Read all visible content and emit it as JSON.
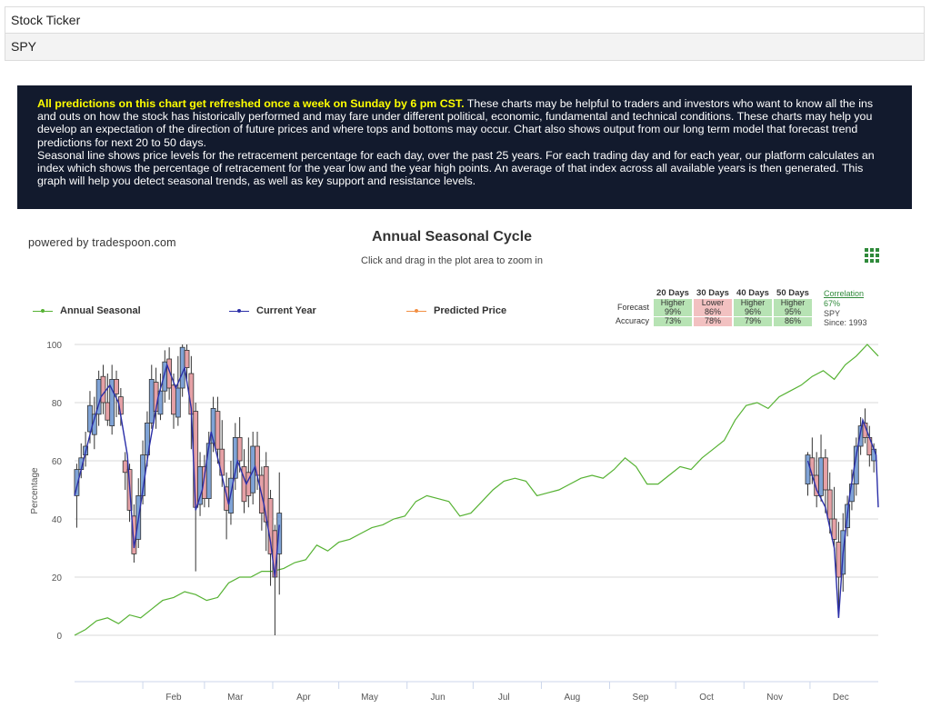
{
  "ticker": {
    "label": "Stock Ticker",
    "symbol": "SPY"
  },
  "info": {
    "highlight": "All predictions on this chart get refreshed once a week on Sunday by 6 pm CST.",
    "para1": " These charts may be helpful to traders and investors who want to know all the ins and outs on how the stock has historically performed and may fare under different political, economic, fundamental and technical conditions. These charts may help you develop an expectation of the direction of future prices and where tops and bottoms may occur. Chart also shows output from our long term model that forecast trend predictions for next 20 to 50 days.",
    "para2": "Seasonal line shows price levels for the retracement percentage for each day, over the past 25 years. For each trading day and for each year, our platform calculates an index which shows the percentage of retracement for the year low and the year high points. An average of that index across all available years is then generated. This graph will help you detect seasonal trends, as well as key support and resistance levels."
  },
  "powered_by": "powered by tradespoon.com",
  "icons": {
    "menu": "grid-menu-icon"
  },
  "colors": {
    "seasonal": "#56b233",
    "current": "#2b2fa8",
    "predicted": "#f28f43",
    "header_bg": "#121a2d",
    "highlight": "#ffff00",
    "up_candle": "#7fa3d6",
    "down_candle": "#e6a1a6"
  },
  "forecast_table": {
    "headers": [
      "20 Days",
      "30 Days",
      "40 Days",
      "50 Days"
    ],
    "forecast_label": "Forecast",
    "accuracy_label": "Accuracy",
    "forecast": [
      {
        "dir": "Higher",
        "pct": "99%",
        "tone": "green"
      },
      {
        "dir": "Lower",
        "pct": "86%",
        "tone": "red"
      },
      {
        "dir": "Higher",
        "pct": "96%",
        "tone": "green"
      },
      {
        "dir": "Higher",
        "pct": "95%",
        "tone": "green"
      }
    ],
    "accuracy": [
      {
        "pct": "73%",
        "tone": "green"
      },
      {
        "pct": "78%",
        "tone": "red"
      },
      {
        "pct": "79%",
        "tone": "green"
      },
      {
        "pct": "86%",
        "tone": "green"
      }
    ]
  },
  "correlation": {
    "label": "Correlation",
    "value": "67%",
    "symbol": "SPY",
    "since": "Since: 1993"
  },
  "chart_data": {
    "type": "line",
    "title": "Annual Seasonal Cycle",
    "subtitle": "Click and drag in the plot area to zoom in",
    "ylabel": "Percentage",
    "ylim": [
      0,
      100
    ],
    "yticks": [
      0,
      20,
      40,
      60,
      80,
      100
    ],
    "xlim": [
      0,
      365
    ],
    "xticks": [
      {
        "label": "Feb",
        "day": 31
      },
      {
        "label": "Mar",
        "day": 59
      },
      {
        "label": "Apr",
        "day": 90
      },
      {
        "label": "May",
        "day": 120
      },
      {
        "label": "Jun",
        "day": 151
      },
      {
        "label": "Jul",
        "day": 181
      },
      {
        "label": "Aug",
        "day": 212
      },
      {
        "label": "Sep",
        "day": 243
      },
      {
        "label": "Oct",
        "day": 273
      },
      {
        "label": "Nov",
        "day": 304
      },
      {
        "label": "Dec",
        "day": 334
      }
    ],
    "grid": true,
    "legend_position": "top-left",
    "series": [
      {
        "name": "Annual Seasonal",
        "kind": "line",
        "x": [
          0,
          5,
          10,
          15,
          20,
          25,
          30,
          35,
          40,
          45,
          50,
          55,
          60,
          65,
          70,
          75,
          80,
          85,
          90,
          95,
          100,
          105,
          110,
          115,
          120,
          125,
          130,
          135,
          140,
          145,
          150,
          155,
          160,
          165,
          170,
          175,
          180,
          185,
          190,
          195,
          200,
          205,
          210,
          215,
          220,
          225,
          230,
          235,
          240,
          245,
          250,
          255,
          260,
          265,
          270,
          275,
          280,
          285,
          290,
          295,
          300,
          305,
          310,
          315,
          320,
          325,
          330,
          335,
          340,
          345,
          350,
          355,
          360,
          365
        ],
        "values": [
          0,
          2,
          5,
          6,
          4,
          7,
          6,
          9,
          12,
          13,
          15,
          14,
          12,
          13,
          18,
          20,
          20,
          22,
          22,
          23,
          25,
          26,
          31,
          29,
          32,
          33,
          35,
          37,
          38,
          40,
          41,
          46,
          48,
          47,
          46,
          41,
          42,
          46,
          50,
          53,
          54,
          53,
          48,
          49,
          50,
          52,
          54,
          55,
          54,
          57,
          61,
          58,
          52,
          52,
          55,
          58,
          57,
          61,
          64,
          67,
          74,
          79,
          80,
          78,
          82,
          84,
          86,
          89,
          91,
          88,
          93,
          96,
          100,
          96
        ]
      },
      {
        "name": "Current Year",
        "kind": "candlestick",
        "candles": [
          {
            "day": 1,
            "open": 48,
            "close": 57,
            "high": 59,
            "low": 37
          },
          {
            "day": 3,
            "open": 57,
            "close": 61,
            "high": 66,
            "low": 54
          },
          {
            "day": 5,
            "open": 62,
            "close": 65,
            "high": 70,
            "low": 58
          },
          {
            "day": 7,
            "open": 70,
            "close": 79,
            "high": 84,
            "low": 66
          },
          {
            "day": 9,
            "open": 69,
            "close": 76,
            "high": 82,
            "low": 64
          },
          {
            "day": 11,
            "open": 76,
            "close": 88,
            "high": 91,
            "low": 72
          },
          {
            "day": 13,
            "open": 89,
            "close": 80,
            "high": 93,
            "low": 76
          },
          {
            "day": 15,
            "open": 80,
            "close": 74,
            "high": 90,
            "low": 72
          },
          {
            "day": 17,
            "open": 72,
            "close": 88,
            "high": 93,
            "low": 69
          },
          {
            "day": 19,
            "open": 88,
            "close": 83,
            "high": 91,
            "low": 75
          },
          {
            "day": 21,
            "open": 82,
            "close": 76,
            "high": 85,
            "low": 72
          },
          {
            "day": 23,
            "open": 60,
            "close": 56,
            "high": 63,
            "low": 50
          },
          {
            "day": 25,
            "open": 57,
            "close": 43,
            "high": 59,
            "low": 39
          },
          {
            "day": 27,
            "open": 41,
            "close": 28,
            "high": 45,
            "low": 25
          },
          {
            "day": 29,
            "open": 33,
            "close": 48,
            "high": 54,
            "low": 30
          },
          {
            "day": 31,
            "open": 48,
            "close": 62,
            "high": 67,
            "low": 45
          },
          {
            "day": 33,
            "open": 62,
            "close": 73,
            "high": 77,
            "low": 58
          },
          {
            "day": 35,
            "open": 73,
            "close": 88,
            "high": 93,
            "low": 71
          },
          {
            "day": 37,
            "open": 87,
            "close": 77,
            "high": 92,
            "low": 71
          },
          {
            "day": 39,
            "open": 76,
            "close": 84,
            "high": 90,
            "low": 74
          },
          {
            "day": 41,
            "open": 84,
            "close": 94,
            "high": 98,
            "low": 80
          },
          {
            "day": 43,
            "open": 95,
            "close": 85,
            "high": 99,
            "low": 81
          },
          {
            "day": 45,
            "open": 86,
            "close": 76,
            "high": 90,
            "low": 71
          },
          {
            "day": 47,
            "open": 75,
            "close": 85,
            "high": 96,
            "low": 72
          },
          {
            "day": 49,
            "open": 85,
            "close": 99,
            "high": 100,
            "low": 82
          },
          {
            "day": 51,
            "open": 98,
            "close": 92,
            "high": 100,
            "low": 88
          },
          {
            "day": 53,
            "open": 90,
            "close": 76,
            "high": 96,
            "low": 64
          },
          {
            "day": 55,
            "open": 77,
            "close": 44,
            "high": 80,
            "low": 22
          },
          {
            "day": 57,
            "open": 45,
            "close": 58,
            "high": 63,
            "low": 41
          },
          {
            "day": 59,
            "open": 58,
            "close": 47,
            "high": 62,
            "low": 44
          },
          {
            "day": 61,
            "open": 47,
            "close": 66,
            "high": 70,
            "low": 44
          },
          {
            "day": 63,
            "open": 66,
            "close": 78,
            "high": 82,
            "low": 63
          },
          {
            "day": 65,
            "open": 77,
            "close": 64,
            "high": 82,
            "low": 59
          },
          {
            "day": 67,
            "open": 64,
            "close": 55,
            "high": 74,
            "low": 51
          },
          {
            "day": 69,
            "open": 51,
            "close": 43,
            "high": 56,
            "low": 33
          },
          {
            "day": 71,
            "open": 42,
            "close": 54,
            "high": 60,
            "low": 38
          },
          {
            "day": 73,
            "open": 54,
            "close": 68,
            "high": 73,
            "low": 50
          },
          {
            "day": 75,
            "open": 68,
            "close": 60,
            "high": 75,
            "low": 56
          },
          {
            "day": 77,
            "open": 58,
            "close": 46,
            "high": 64,
            "low": 42
          },
          {
            "day": 79,
            "open": 56,
            "close": 48,
            "high": 68,
            "low": 44
          },
          {
            "day": 81,
            "open": 49,
            "close": 65,
            "high": 70,
            "low": 45
          },
          {
            "day": 83,
            "open": 65,
            "close": 55,
            "high": 70,
            "low": 50
          },
          {
            "day": 85,
            "open": 55,
            "close": 42,
            "high": 58,
            "low": 36
          },
          {
            "day": 87,
            "open": 58,
            "close": 39,
            "high": 63,
            "low": 29
          },
          {
            "day": 89,
            "open": 47,
            "close": 28,
            "high": 50,
            "low": 17
          },
          {
            "day": 91,
            "open": 36,
            "close": 20,
            "high": 38,
            "low": 0
          },
          {
            "day": 93,
            "open": 28,
            "close": 42,
            "high": 56,
            "low": 14
          },
          {
            "day": 333,
            "open": 52,
            "close": 62,
            "high": 63,
            "low": 48
          },
          {
            "day": 335,
            "open": 61,
            "close": 55,
            "high": 68,
            "low": 52
          },
          {
            "day": 337,
            "open": 55,
            "close": 48,
            "high": 63,
            "low": 44
          },
          {
            "day": 339,
            "open": 48,
            "close": 61,
            "high": 69,
            "low": 46
          },
          {
            "day": 341,
            "open": 61,
            "close": 50,
            "high": 64,
            "low": 42
          },
          {
            "day": 343,
            "open": 50,
            "close": 40,
            "high": 56,
            "low": 35
          },
          {
            "day": 345,
            "open": 40,
            "close": 33,
            "high": 51,
            "low": 29
          },
          {
            "day": 347,
            "open": 32,
            "close": 20,
            "high": 39,
            "low": 6
          },
          {
            "day": 349,
            "open": 21,
            "close": 36,
            "high": 42,
            "low": 15
          },
          {
            "day": 351,
            "open": 37,
            "close": 45,
            "high": 48,
            "low": 34
          },
          {
            "day": 353,
            "open": 46,
            "close": 52,
            "high": 57,
            "low": 43
          },
          {
            "day": 355,
            "open": 52,
            "close": 65,
            "high": 68,
            "low": 48
          },
          {
            "day": 357,
            "open": 65,
            "close": 72,
            "high": 75,
            "low": 62
          },
          {
            "day": 359,
            "open": 73,
            "close": 68,
            "high": 78,
            "low": 66
          },
          {
            "day": 361,
            "open": 68,
            "close": 62,
            "high": 72,
            "low": 58
          },
          {
            "day": 363,
            "open": 60,
            "close": 64,
            "high": 66,
            "low": 56
          }
        ],
        "trend_x": [
          0,
          4,
          8,
          12,
          16,
          20,
          24,
          27,
          30,
          34,
          38,
          42,
          46,
          50,
          53,
          55,
          58,
          62,
          66,
          70,
          74,
          78,
          82,
          86,
          89,
          91,
          93,
          333,
          337,
          341,
          345,
          347,
          349,
          352,
          355,
          358,
          361,
          364,
          365
        ],
        "trend_values": [
          48,
          60,
          72,
          82,
          86,
          80,
          62,
          30,
          45,
          65,
          82,
          93,
          85,
          92,
          78,
          43,
          50,
          70,
          58,
          45,
          60,
          52,
          58,
          45,
          32,
          20,
          38,
          60,
          50,
          44,
          30,
          6,
          28,
          48,
          62,
          74,
          68,
          62,
          44
        ]
      },
      {
        "name": "Predicted Price",
        "kind": "line",
        "x": [],
        "values": []
      }
    ]
  }
}
